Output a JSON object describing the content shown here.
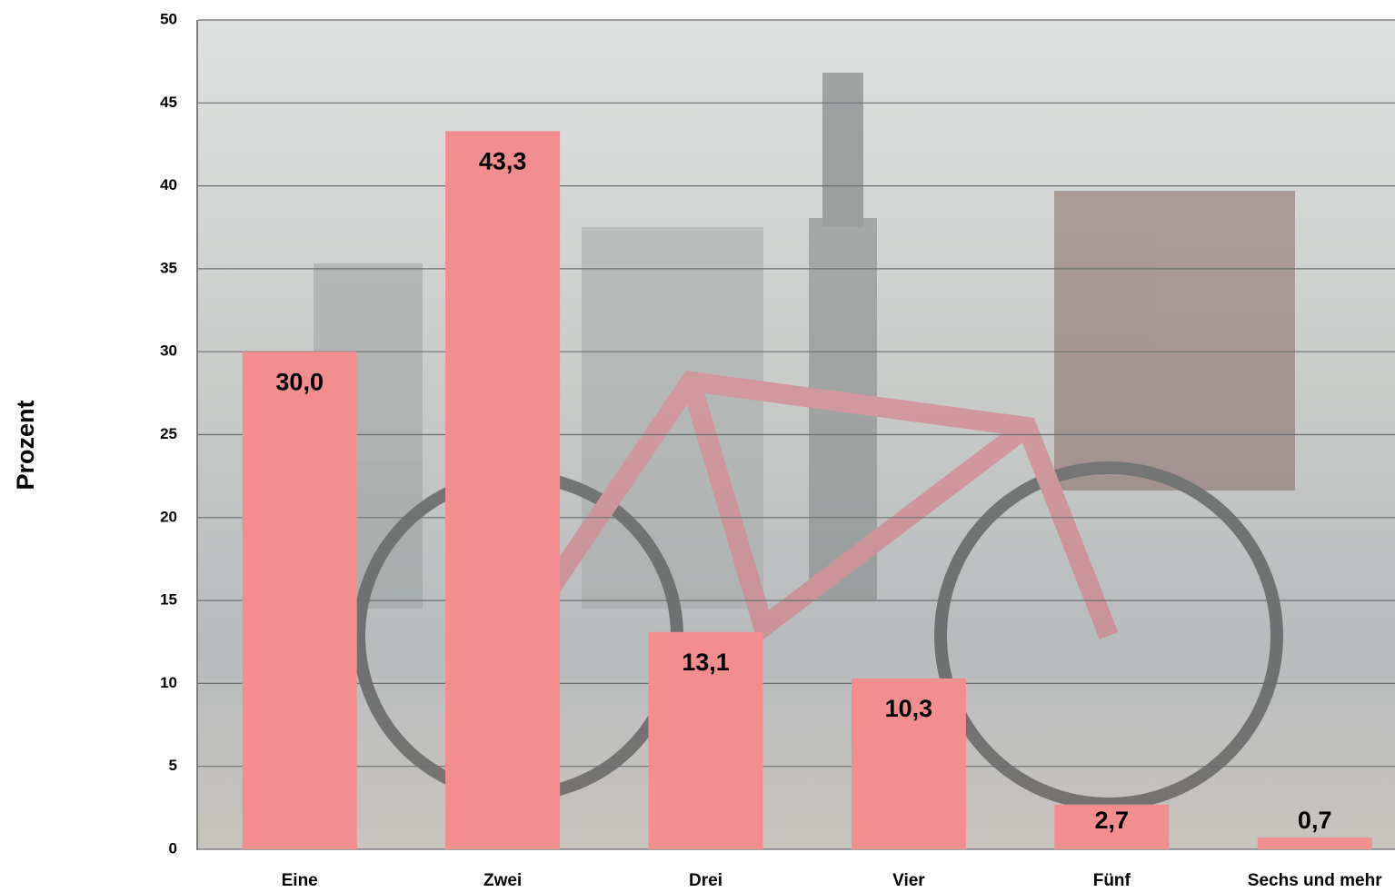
{
  "chart_data": {
    "type": "bar",
    "y_label": "Prozent",
    "categories": [
      "Eine",
      "Zwei",
      "Drei",
      "Vier",
      "Fünf",
      "Sechs und mehr"
    ],
    "values": [
      30.0,
      43.3,
      13.1,
      10.3,
      2.7,
      0.7
    ],
    "value_labels": [
      "30,0",
      "43,3",
      "13,1",
      "10,3",
      "2,7",
      "0,7"
    ],
    "color": "#f28e8e",
    "ylim": [
      0,
      50
    ],
    "yticks": [
      0,
      5,
      10,
      15,
      20,
      25,
      30,
      35,
      40,
      45,
      50
    ],
    "grid": true
  }
}
